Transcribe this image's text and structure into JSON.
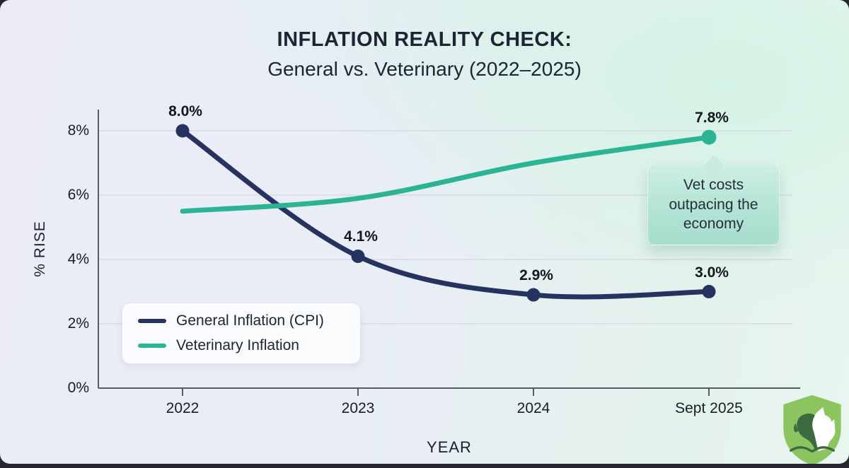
{
  "title": {
    "line1": "INFLATION REALITY CHECK:",
    "line2": "General vs. Veterinary (2022–2025)"
  },
  "chart_data": {
    "type": "line",
    "categories": [
      "2022",
      "2023",
      "2024",
      "Sept 2025"
    ],
    "series": [
      {
        "name": "General Inflation (CPI)",
        "color": "#263260",
        "values": [
          8.0,
          4.1,
          2.9,
          3.0
        ],
        "point_labels": [
          "8.0%",
          "4.1%",
          "2.9%",
          "3.0%"
        ],
        "markers": "all"
      },
      {
        "name": "Veterinary Inflation",
        "color": "#2bb494",
        "values": [
          5.5,
          5.9,
          7.0,
          7.8
        ],
        "point_labels": [
          null,
          null,
          null,
          "7.8%"
        ],
        "markers": "last"
      }
    ],
    "xlabel": "YEAR",
    "ylabel": "% RISE",
    "ylim": [
      0,
      8
    ],
    "yticks": [
      0,
      2,
      4,
      6,
      8
    ],
    "ytick_labels": [
      "0%",
      "2%",
      "4%",
      "6%",
      "8%"
    ],
    "grid": true,
    "legend_position": "lower-left",
    "annotation": {
      "text": "Vet costs\noutpacing the\neconomy",
      "points_to": "Veterinary Inflation at Sept 2025"
    }
  },
  "colors": {
    "grid": "#d7dae3",
    "axis": "#565b66",
    "navy": "#263260",
    "teal": "#2bb494",
    "logo_shield": "#8cc45f",
    "logo_dark": "#3c6b40"
  },
  "logo": {
    "name": "pet-shield-logo"
  }
}
